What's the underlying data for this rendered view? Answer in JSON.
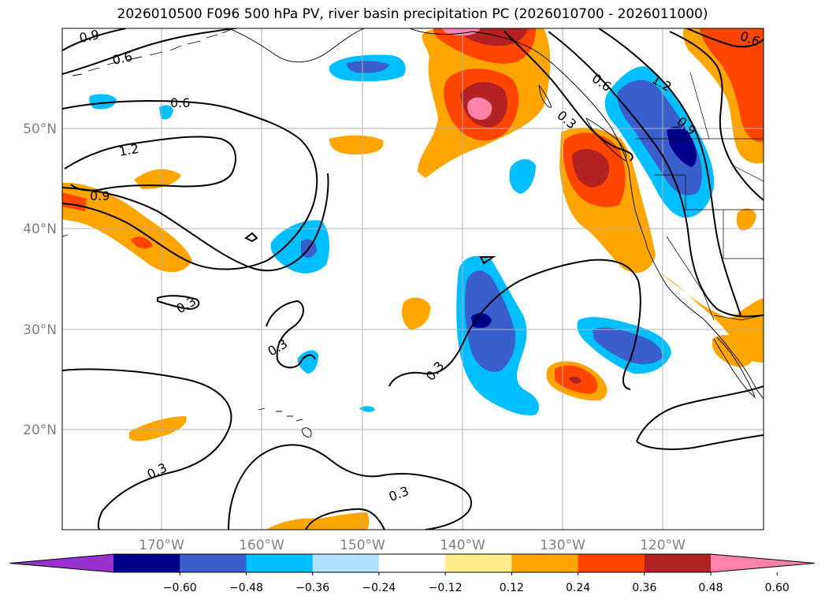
{
  "title": "2026010500 F096 500 hPa PV, river basin precipitation PC (2026010700 - 2026011000)",
  "map": {
    "lon_ticks": [
      "170°W",
      "160°W",
      "150°W",
      "140°W",
      "130°W",
      "120°W"
    ],
    "lat_ticks": [
      "50°N",
      "40°N",
      "30°N",
      "20°N"
    ]
  },
  "pv_contours": {
    "labels": [
      "0.9",
      "0.6",
      "0.6",
      "1.2",
      "0.9",
      "0.3",
      "0.3",
      "0.3",
      "0.3",
      "0.3",
      "0.6",
      "1.2",
      "0.3",
      "0.9",
      "0.6"
    ]
  },
  "colorbar": {
    "tick_labels": [
      "−0.60",
      "−0.48",
      "−0.36",
      "−0.24",
      "−0.12",
      "0.12",
      "0.24",
      "0.36",
      "0.48",
      "0.60"
    ],
    "colors": [
      "#9932cc",
      "#00008b",
      "#3a5fcd",
      "#00bfff",
      "#b0e2ff",
      "#ffffff",
      "#ffec8b",
      "#ffa500",
      "#ff4500",
      "#b22222",
      "#ff82ab"
    ]
  }
}
